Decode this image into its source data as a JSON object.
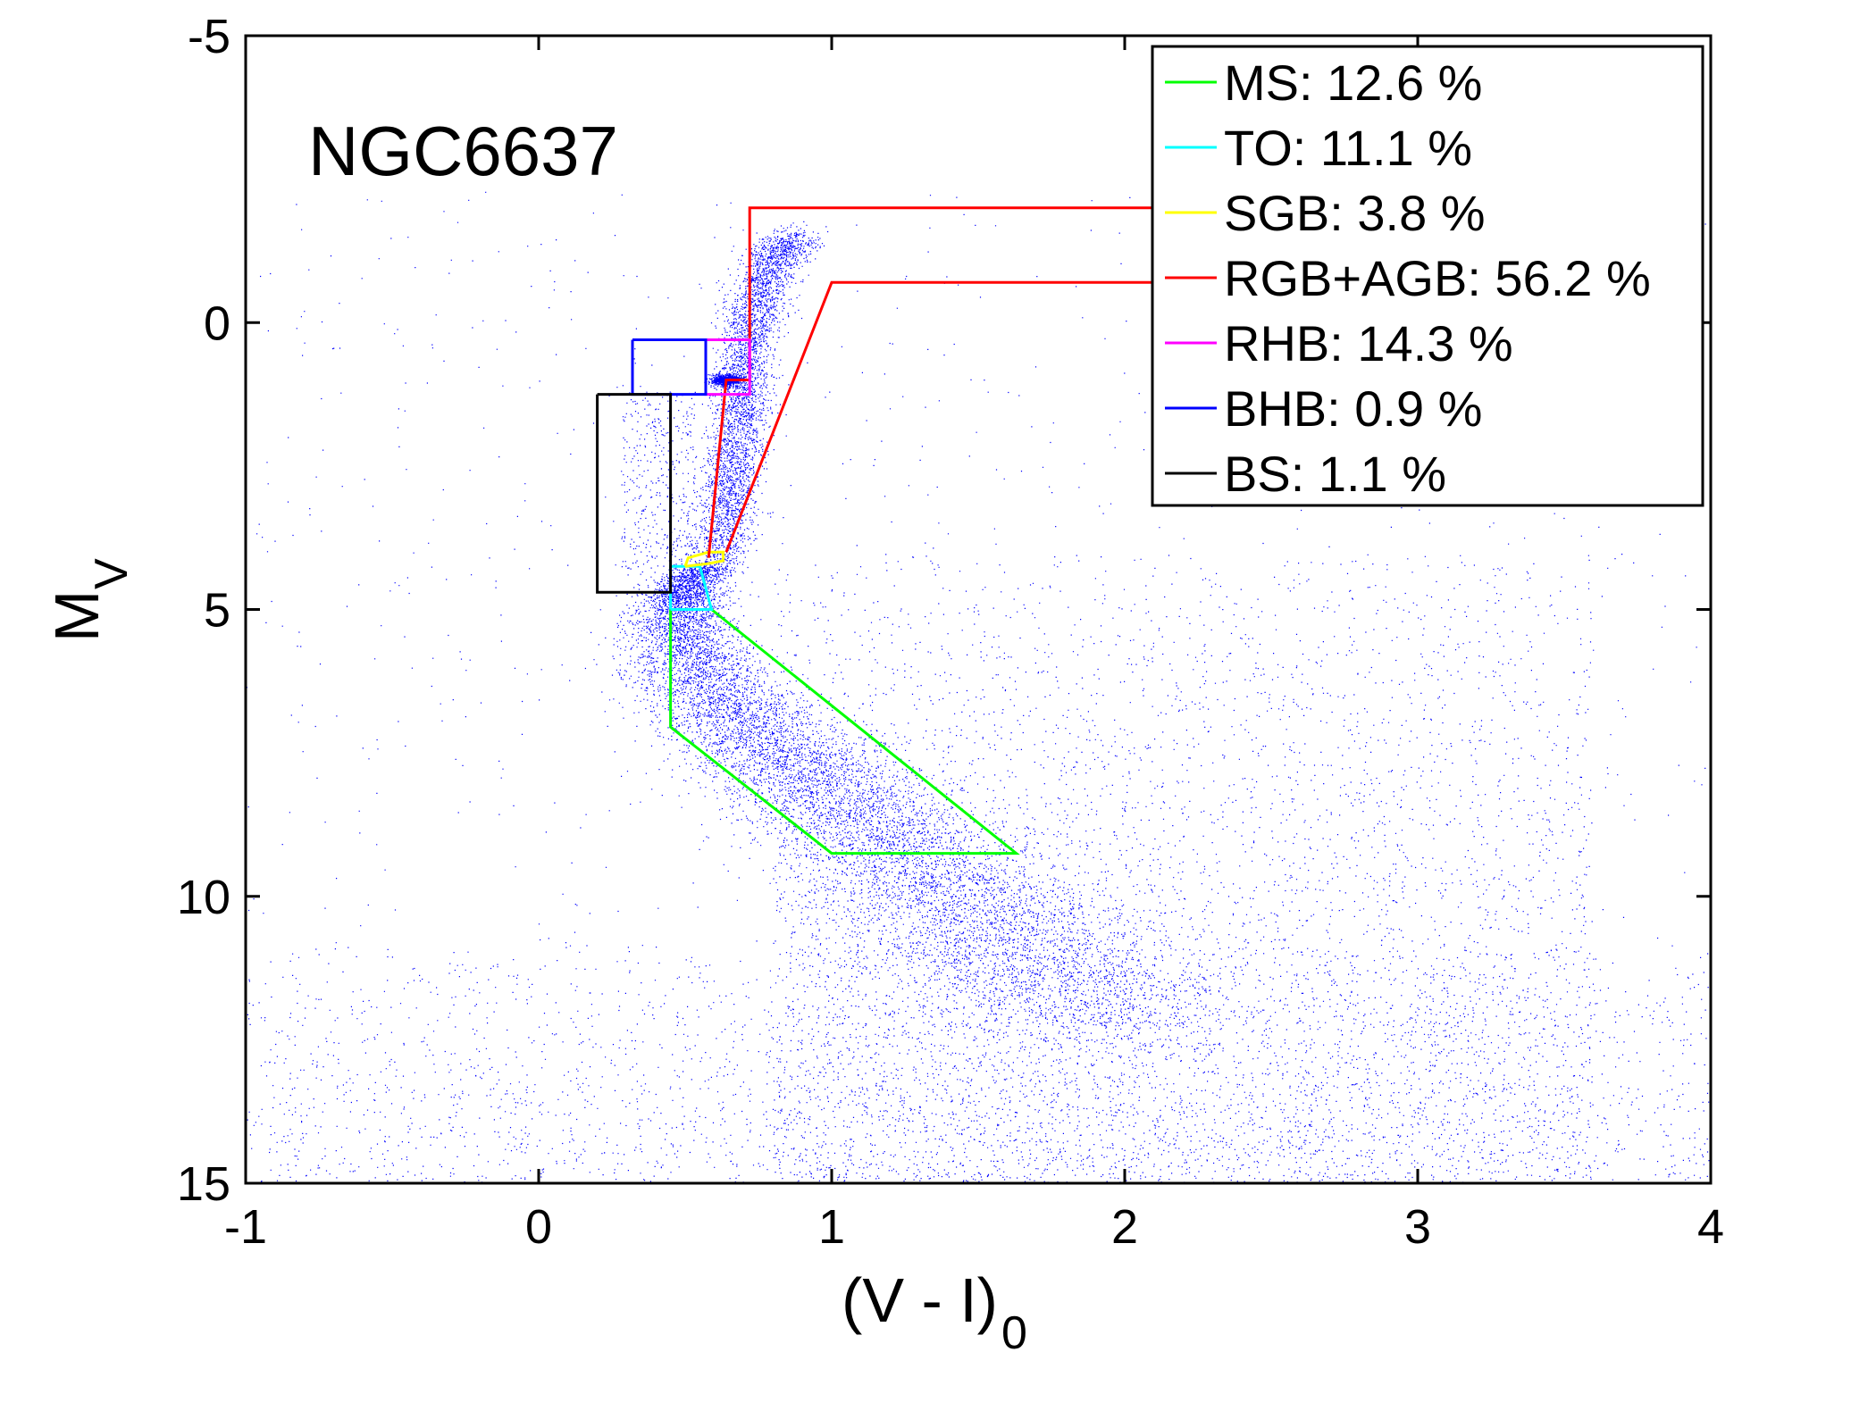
{
  "chart_data": {
    "type": "scatter",
    "title": "",
    "cluster_name": "NGC6637",
    "xlabel": {
      "main": "(V - I)",
      "sub": "0"
    },
    "ylabel": {
      "main": "M",
      "sub": "V"
    },
    "xlim": [
      -1,
      4
    ],
    "ylim": [
      15,
      -5
    ],
    "y_inverted": true,
    "grid": false,
    "x_ticks": [
      {
        "value": -1,
        "label": "-1"
      },
      {
        "value": 0,
        "label": "0"
      },
      {
        "value": 1,
        "label": "1"
      },
      {
        "value": 2,
        "label": "2"
      },
      {
        "value": 3,
        "label": "3"
      },
      {
        "value": 4,
        "label": "4"
      }
    ],
    "y_ticks": [
      {
        "value": -5,
        "label": "-5"
      },
      {
        "value": 0,
        "label": "0"
      },
      {
        "value": 5,
        "label": "5"
      },
      {
        "value": 10,
        "label": "10"
      },
      {
        "value": 15,
        "label": "15"
      }
    ],
    "points_color": "#0000ff",
    "main_sequence_ridge": [
      [
        0.58,
        4.25
      ],
      [
        0.5,
        4.6
      ],
      [
        0.48,
        5.0
      ],
      [
        0.5,
        5.6
      ],
      [
        0.56,
        6.2
      ],
      [
        0.67,
        6.9
      ],
      [
        0.82,
        7.5
      ],
      [
        0.99,
        8.2
      ],
      [
        1.17,
        8.9
      ],
      [
        1.35,
        9.7
      ],
      [
        1.53,
        10.5
      ],
      [
        1.72,
        11.3
      ],
      [
        1.95,
        12.2
      ]
    ],
    "giant_branch_ridge": [
      [
        0.62,
        4.2
      ],
      [
        0.64,
        3.4
      ],
      [
        0.66,
        2.6
      ],
      [
        0.68,
        1.8
      ],
      [
        0.7,
        1.0
      ],
      [
        0.72,
        0.2
      ],
      [
        0.75,
        -0.5
      ],
      [
        0.8,
        -1.1
      ],
      [
        0.88,
        -1.5
      ]
    ],
    "red_clump": {
      "x": 0.64,
      "y": 1.0
    },
    "legend": {
      "placement": "top-right",
      "entries": [
        {
          "label": "MS: 12.6 %",
          "color": "#00ff00"
        },
        {
          "label": "TO: 11.1 %",
          "color": "#00ffff"
        },
        {
          "label": "SGB: 3.8 %",
          "color": "#ffff00"
        },
        {
          "label": "RGB+AGB: 56.2 %",
          "color": "#ff0000"
        },
        {
          "label": "RHB: 14.3 %",
          "color": "#ff00ff"
        },
        {
          "label": "BHB: 0.9 %",
          "color": "#0000ff"
        },
        {
          "label": "BS: 1.1 %",
          "color": "#000000"
        }
      ]
    },
    "regions": [
      {
        "name": "MS",
        "color": "#00ff00",
        "points": [
          [
            0.45,
            5.0
          ],
          [
            0.59,
            5.0
          ],
          [
            1.63,
            9.25
          ],
          [
            1.0,
            9.25
          ],
          [
            0.45,
            7.05
          ],
          [
            0.45,
            5.0
          ]
        ]
      },
      {
        "name": "TO",
        "color": "#00ffff",
        "points": [
          [
            0.45,
            5.0
          ],
          [
            0.45,
            4.25
          ],
          [
            0.55,
            4.25
          ],
          [
            0.59,
            5.0
          ],
          [
            0.45,
            5.0
          ]
        ]
      },
      {
        "name": "SGB",
        "color": "#ffff00",
        "points": [
          [
            0.5,
            4.25
          ],
          [
            0.51,
            4.1
          ],
          [
            0.58,
            4.0
          ],
          [
            0.63,
            4.0
          ],
          [
            0.63,
            4.15
          ],
          [
            0.58,
            4.2
          ],
          [
            0.5,
            4.25
          ]
        ]
      },
      {
        "name": "RGB+AGB",
        "color": "#ff0000",
        "points": [
          [
            0.58,
            4.1
          ],
          [
            0.64,
            1.0
          ],
          [
            0.72,
            1.0
          ],
          [
            0.72,
            -2.0
          ],
          [
            2.1,
            -2.0
          ]
        ]
      },
      {
        "name": "RGB+AGB",
        "color": "#ff0000",
        "points": [
          [
            0.64,
            4.0
          ],
          [
            1.0,
            -0.7
          ],
          [
            2.1,
            -0.7
          ]
        ]
      },
      {
        "name": "RHB",
        "color": "#ff00ff",
        "points": [
          [
            0.57,
            0.3
          ],
          [
            0.72,
            0.3
          ],
          [
            0.72,
            1.25
          ],
          [
            0.57,
            1.25
          ],
          [
            0.57,
            0.3
          ]
        ]
      },
      {
        "name": "BHB",
        "color": "#0000ff",
        "points": [
          [
            0.32,
            0.3
          ],
          [
            0.57,
            0.3
          ],
          [
            0.57,
            1.25
          ],
          [
            0.32,
            1.25
          ],
          [
            0.32,
            0.3
          ]
        ]
      },
      {
        "name": "BS",
        "color": "#000000",
        "points": [
          [
            0.2,
            1.25
          ],
          [
            0.45,
            1.25
          ],
          [
            0.45,
            4.7
          ],
          [
            0.2,
            4.7
          ],
          [
            0.2,
            1.25
          ]
        ]
      }
    ]
  }
}
